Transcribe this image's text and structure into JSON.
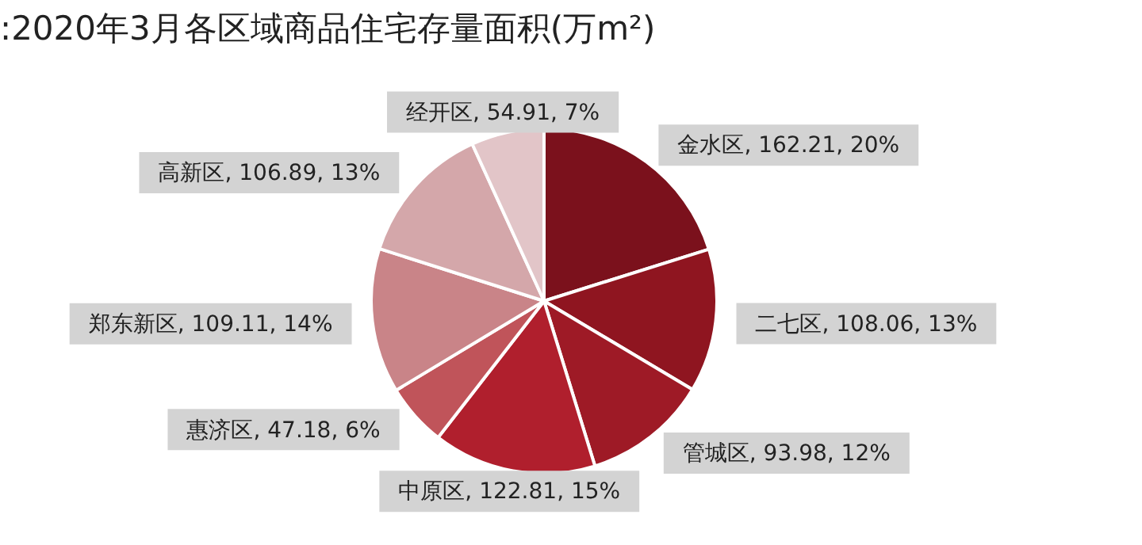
{
  "chart_data": {
    "type": "pie",
    "title": ":2020年3月各区域商品住宅存量面积(万m²)",
    "categories": [
      "金水区",
      "二七区",
      "管城区",
      "中原区",
      "惠济区",
      "郑东新区",
      "高新区",
      "经开区"
    ],
    "values": [
      162.21,
      108.06,
      93.98,
      122.81,
      47.18,
      109.11,
      106.89,
      54.91
    ],
    "colors": [
      "#7b111c",
      "#8f1520",
      "#9e1a26",
      "#b01f2d",
      "#c0545a",
      "#c98488",
      "#d4a7aa",
      "#e2c5c8"
    ],
    "value_labels": [
      "162.21, 20%",
      "108.06, 13%",
      "93.98, 12%",
      "122.81, 15%",
      "47.18, 6%",
      "109.11, 14%",
      "106.89, 13%",
      "54.91, 7%"
    ],
    "legend": false
  }
}
